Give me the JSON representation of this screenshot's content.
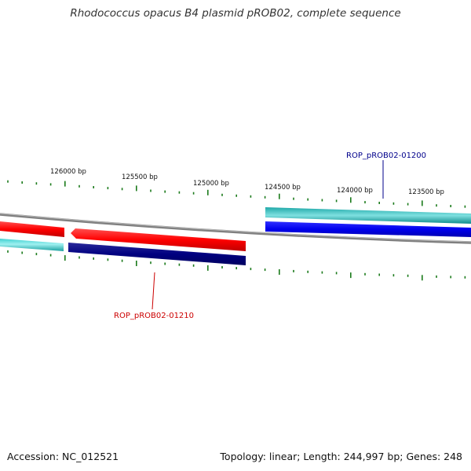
{
  "title": "Rhodococcus opacus B4 plasmid pROB02, complete sequence",
  "footer": {
    "accession": "Accession: NC_012521",
    "summary": "Topology: linear; Length: 244,997 bp; Genes: 248"
  },
  "ruler_labels": [
    "126000 bp",
    "125500 bp",
    "125000 bp",
    "124500 bp",
    "124000 bp",
    "123500 bp"
  ],
  "genes": [
    {
      "name": "ROP_pROB02-01200",
      "color": "#00008b"
    },
    {
      "name": "ROP_pROB02-01210",
      "color": "#cc0000"
    }
  ],
  "colors": {
    "backbone": "#808080",
    "forward_cds": "#ff0000",
    "reverse_cds": "#0000ee",
    "forward_gene": "#00b8b8",
    "reverse_gene": "#000080",
    "tick": "#1a7a1a"
  }
}
